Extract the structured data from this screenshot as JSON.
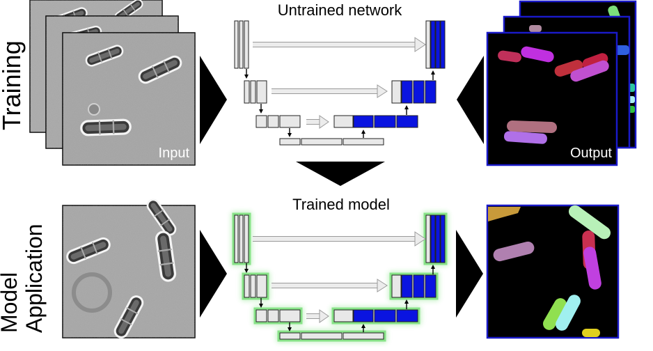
{
  "rows": {
    "training": {
      "label": "Training",
      "network_title": "Untrained network",
      "input_label": "Input",
      "output_label": "Output"
    },
    "application": {
      "label_line1": "Model",
      "label_line2": "Application",
      "network_title": "Trained model"
    }
  },
  "colors": {
    "decoder_block": "#0a14e0",
    "output_frame": "#1a1ac8",
    "trained_glow": "#7be07b",
    "arrow_fill": "#000000",
    "skip_arrow": "#c8c8c8"
  },
  "icons": [
    "right-arrow-icon",
    "left-arrow-icon",
    "down-arrow-icon"
  ]
}
